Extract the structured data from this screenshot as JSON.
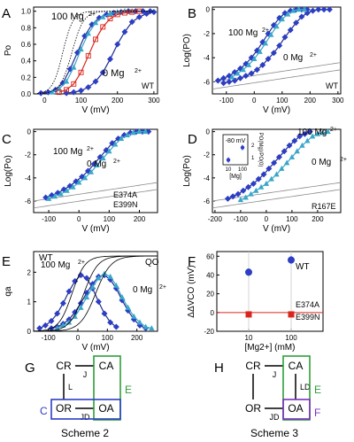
{
  "colors": {
    "blue_fill": "#2c3ec4",
    "blue_dark": "#1f2a8c",
    "cyan": "#3aa7c9",
    "red": "#d9261c",
    "green": "#2e9e3a",
    "purple": "#7a2fc0",
    "axis": "#000000",
    "ref_curve": "#8a8a8a"
  },
  "chart_data": [
    {
      "panel": "A",
      "type": "line",
      "xlabel": "V (mV)",
      "ylabel": "Po",
      "xlim": [
        -30,
        310
      ],
      "ylim": [
        0,
        1.05
      ],
      "xticks": [
        0,
        100,
        200,
        300
      ],
      "yticks": [
        0.0,
        0.2,
        0.4,
        0.6,
        0.8,
        1.0
      ],
      "annotations": [
        "100 Mg",
        "2+",
        "0 Mg",
        "2+",
        "WT"
      ],
      "series": [
        {
          "style": "blue_fill",
          "x": [
            -10,
            10,
            30,
            50,
            70,
            90,
            110,
            130,
            150,
            170,
            190,
            210,
            230,
            250,
            270,
            290
          ],
          "y": [
            0.01,
            0.02,
            0.05,
            0.13,
            0.3,
            0.5,
            0.7,
            0.84,
            0.92,
            0.96,
            0.98,
            0.99,
            1,
            1,
            1,
            1
          ]
        },
        {
          "style": "blue_fill",
          "x": [
            60,
            80,
            100,
            120,
            140,
            160,
            180,
            200,
            220,
            240,
            260,
            280,
            300
          ],
          "y": [
            0.01,
            0.02,
            0.04,
            0.08,
            0.15,
            0.26,
            0.42,
            0.6,
            0.75,
            0.87,
            0.93,
            0.97,
            0.99
          ]
        },
        {
          "style": "cyan",
          "x": [
            20,
            40,
            60,
            80,
            100,
            120,
            140,
            160,
            180,
            200,
            220,
            240
          ],
          "y": [
            0.02,
            0.06,
            0.15,
            0.32,
            0.54,
            0.73,
            0.86,
            0.93,
            0.97,
            0.99,
            1,
            1
          ]
        },
        {
          "style": "red_open",
          "x": [
            40,
            60,
            80,
            100,
            120,
            140,
            160,
            180,
            200,
            220,
            240,
            260
          ],
          "y": [
            0.02,
            0.05,
            0.12,
            0.26,
            0.46,
            0.66,
            0.81,
            0.91,
            0.96,
            0.98,
            0.99,
            1
          ]
        }
      ]
    },
    {
      "panel": "B",
      "type": "line",
      "xlabel": "V (mV)",
      "ylabel": "Log(PO)",
      "xlim": [
        -150,
        310
      ],
      "ylim": [
        -7,
        0.2
      ],
      "xticks": [
        -100,
        0,
        100,
        200,
        300
      ],
      "yticks": [
        0,
        -2,
        -4,
        -6
      ],
      "annotations": [
        "100 Mg",
        "2+",
        "0 Mg",
        "2+",
        "WT"
      ],
      "series": [
        {
          "style": "blue_fill",
          "x": [
            -130,
            -110,
            -90,
            -70,
            -50,
            -30,
            -10,
            10,
            30,
            50,
            70,
            90,
            110,
            130,
            150,
            170,
            190
          ],
          "y": [
            -5.9,
            -5.7,
            -5.5,
            -5.2,
            -4.9,
            -4.5,
            -4.0,
            -3.4,
            -2.7,
            -2.0,
            -1.3,
            -0.7,
            -0.3,
            -0.1,
            0,
            0,
            0
          ]
        },
        {
          "style": "blue_fill",
          "x": [
            -110,
            -90,
            -70,
            -50,
            -30,
            -10,
            10,
            30,
            50,
            70,
            90,
            110,
            130,
            150,
            170,
            190,
            210,
            230,
            250,
            270
          ],
          "y": [
            -6.1,
            -6.0,
            -5.9,
            -5.7,
            -5.5,
            -5.3,
            -5.0,
            -4.6,
            -4.1,
            -3.6,
            -3.0,
            -2.3,
            -1.7,
            -1.1,
            -0.6,
            -0.3,
            -0.1,
            0,
            0,
            0
          ]
        },
        {
          "style": "cyan",
          "x": [
            -80,
            -60,
            -40,
            -20,
            0,
            20,
            40,
            60,
            80,
            100,
            120,
            140,
            160,
            180
          ],
          "y": [
            -5.6,
            -5.3,
            -5.0,
            -4.6,
            -4.1,
            -3.5,
            -2.8,
            -2.1,
            -1.4,
            -0.8,
            -0.4,
            -0.1,
            0,
            0
          ]
        }
      ]
    },
    {
      "panel": "C",
      "type": "line",
      "xlabel": "V (mV)",
      "ylabel": "Log(Po)",
      "xlim": [
        -150,
        260
      ],
      "ylim": [
        -7,
        0.2
      ],
      "xticks": [
        -100,
        0,
        100,
        200
      ],
      "yticks": [
        0,
        -2,
        -4,
        -6
      ],
      "annotations": [
        "100 Mg",
        "2+",
        "0 Mg",
        "2+",
        "E374A",
        "E399N"
      ],
      "series": [
        {
          "style": "blue_fill",
          "x": [
            -110,
            -90,
            -70,
            -50,
            -30,
            -10,
            10,
            30,
            50,
            70,
            90,
            110,
            130,
            150,
            170,
            190,
            210,
            230
          ],
          "y": [
            -5.7,
            -5.5,
            -5.3,
            -5.0,
            -4.7,
            -4.3,
            -3.9,
            -3.4,
            -2.8,
            -2.2,
            -1.6,
            -1.0,
            -0.6,
            -0.3,
            -0.1,
            0,
            0,
            0
          ]
        },
        {
          "style": "cyan",
          "x": [
            -100,
            -80,
            -60,
            -40,
            -20,
            0,
            20,
            40,
            60,
            80,
            100,
            120,
            140,
            160,
            180,
            200,
            220
          ],
          "y": [
            -5.8,
            -5.6,
            -5.4,
            -5.1,
            -4.8,
            -4.4,
            -4.0,
            -3.5,
            -2.9,
            -2.3,
            -1.7,
            -1.1,
            -0.6,
            -0.3,
            -0.1,
            0,
            0
          ]
        }
      ]
    },
    {
      "panel": "D",
      "type": "line",
      "xlabel": "V (mV)",
      "ylabel": "Log(Po)",
      "xlim": [
        -210,
        290
      ],
      "ylim": [
        -7,
        0.2
      ],
      "xticks": [
        -200,
        -100,
        0,
        100,
        200
      ],
      "yticks": [
        0,
        -2,
        -4,
        -6
      ],
      "annotations": [
        "100 Mg",
        "2+",
        "0 Mg",
        "2+",
        "R167E"
      ],
      "series": [
        {
          "style": "blue_fill",
          "x": [
            -150,
            -130,
            -110,
            -90,
            -70,
            -50,
            -30,
            -10,
            10,
            30,
            50,
            70,
            90,
            110,
            130,
            150,
            170
          ],
          "y": [
            -5.8,
            -5.6,
            -5.4,
            -5.1,
            -4.8,
            -4.5,
            -4.1,
            -3.7,
            -3.2,
            -2.7,
            -2.2,
            -1.7,
            -1.2,
            -0.8,
            -0.4,
            -0.2,
            0
          ]
        },
        {
          "style": "cyan",
          "x": [
            -100,
            -80,
            -60,
            -40,
            -20,
            0,
            20,
            40,
            60,
            80,
            100,
            120,
            140,
            160,
            180,
            200,
            220,
            240
          ],
          "y": [
            -5.9,
            -5.7,
            -5.4,
            -5.1,
            -4.8,
            -4.5,
            -4.1,
            -3.7,
            -3.2,
            -2.7,
            -2.2,
            -1.7,
            -1.2,
            -0.8,
            -0.4,
            -0.2,
            -0.1,
            0
          ]
        }
      ],
      "inset": {
        "title": "-80 mV",
        "xlabel": "[Mg]",
        "ylabel": "PO(Mg)/PO(0)",
        "xticks": [
          "10",
          "100"
        ],
        "yticks": [
          "1",
          "2"
        ],
        "points": [
          {
            "x": "10",
            "y": 1.1
          },
          {
            "x": "100",
            "y": 2.1
          }
        ]
      }
    },
    {
      "panel": "E",
      "type": "line",
      "xlabel": "V (mV)",
      "ylabel": "qa",
      "xlim": [
        -150,
        270
      ],
      "ylim": [
        0,
        2.7
      ],
      "xticks": [
        -100,
        0,
        100,
        200
      ],
      "yticks": [
        0,
        1,
        2
      ],
      "annotations": [
        "WT",
        "100 Mg",
        "2+",
        "QO",
        "0 Mg",
        "2+"
      ],
      "series": [
        {
          "style": "blue_fill",
          "x": [
            -130,
            -110,
            -90,
            -70,
            -50,
            -30,
            -10,
            10,
            30,
            50,
            70,
            90,
            110,
            130
          ],
          "y": [
            0.1,
            0.2,
            0.35,
            0.6,
            0.95,
            1.35,
            1.7,
            1.9,
            1.8,
            1.45,
            1.0,
            0.6,
            0.3,
            0.15
          ]
        },
        {
          "style": "blue_fill",
          "x": [
            -90,
            -70,
            -50,
            -30,
            -10,
            10,
            30,
            50,
            70,
            90,
            110,
            130,
            150,
            170,
            190,
            210,
            230
          ],
          "y": [
            0.1,
            0.15,
            0.25,
            0.4,
            0.65,
            0.95,
            1.3,
            1.6,
            1.85,
            1.9,
            1.75,
            1.45,
            1.05,
            0.7,
            0.4,
            0.2,
            0.1
          ]
        },
        {
          "style": "cyan",
          "x": [
            -70,
            -50,
            -30,
            -10,
            10,
            30,
            50,
            70,
            90,
            110,
            130,
            150,
            170,
            190,
            210,
            230,
            250
          ],
          "y": [
            0.1,
            0.2,
            0.3,
            0.5,
            0.8,
            1.15,
            1.5,
            1.8,
            1.95,
            1.85,
            1.55,
            1.15,
            0.8,
            0.5,
            0.3,
            0.15,
            0.1
          ]
        }
      ]
    },
    {
      "panel": "F",
      "type": "scatter",
      "xlabel": "[Mg2+] (mM)",
      "ylabel": "ΔΔVCO (mV)",
      "categories": [
        "10",
        "100"
      ],
      "ylim": [
        -20,
        65
      ],
      "yticks": [
        -20,
        0,
        20,
        40,
        60
      ],
      "annotations": [
        "WT",
        "E374A",
        "E399N"
      ],
      "series": [
        {
          "name": "WT",
          "values": [
            43,
            56
          ],
          "err": [
            4,
            4
          ]
        },
        {
          "name": "E374A E399N",
          "values": [
            -2,
            -2
          ],
          "err": [
            3,
            3
          ]
        }
      ]
    }
  ],
  "schemes": {
    "G": {
      "label": "G",
      "caption": "Scheme 2",
      "states": [
        "CR",
        "CA",
        "OR",
        "OA"
      ],
      "edges": [
        "J",
        "L",
        "JD"
      ],
      "boxes": [
        "E",
        "C"
      ]
    },
    "H": {
      "label": "H",
      "caption": "Scheme 3",
      "states": [
        "CR",
        "CA",
        "OR",
        "OA"
      ],
      "edges": [
        "J",
        "LD",
        "JD"
      ],
      "boxes": [
        "E",
        "F"
      ]
    }
  }
}
